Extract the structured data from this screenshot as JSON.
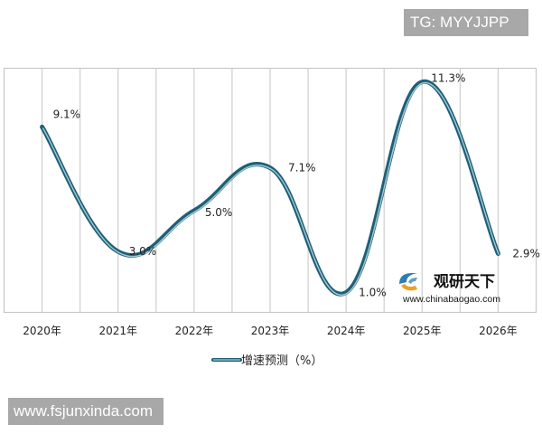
{
  "watermarks": {
    "top": "TG: MYYJJPP",
    "bottom": "www.fsjunxinda.com"
  },
  "logo": {
    "name": "观研天下",
    "url": "www.chinabaogao.com"
  },
  "legend": {
    "label": "增速预测（%）"
  },
  "colors": {
    "line_dark": "#1f5f75",
    "line_light": "#9fc9d8",
    "grid": "#cfcfcf",
    "watermark_bg": "#a8a8a8"
  },
  "chart_data": {
    "type": "line",
    "title": "",
    "xlabel": "",
    "ylabel": "",
    "categories": [
      "2020年",
      "2021年",
      "2022年",
      "2023年",
      "2024年",
      "2025年",
      "2026年"
    ],
    "series": [
      {
        "name": "增速预测（%）",
        "values": [
          9.1,
          3.0,
          5.0,
          7.1,
          1.0,
          11.3,
          2.9
        ],
        "labels": [
          "9.1%",
          "3.0%",
          "5.0%",
          "7.1%",
          "1.0%",
          "11.3%",
          "2.9%"
        ]
      }
    ],
    "smooth": true,
    "grid": {
      "vertical": true,
      "horizontal": false
    },
    "y_axis_visible": false,
    "legend_position": "bottom"
  }
}
